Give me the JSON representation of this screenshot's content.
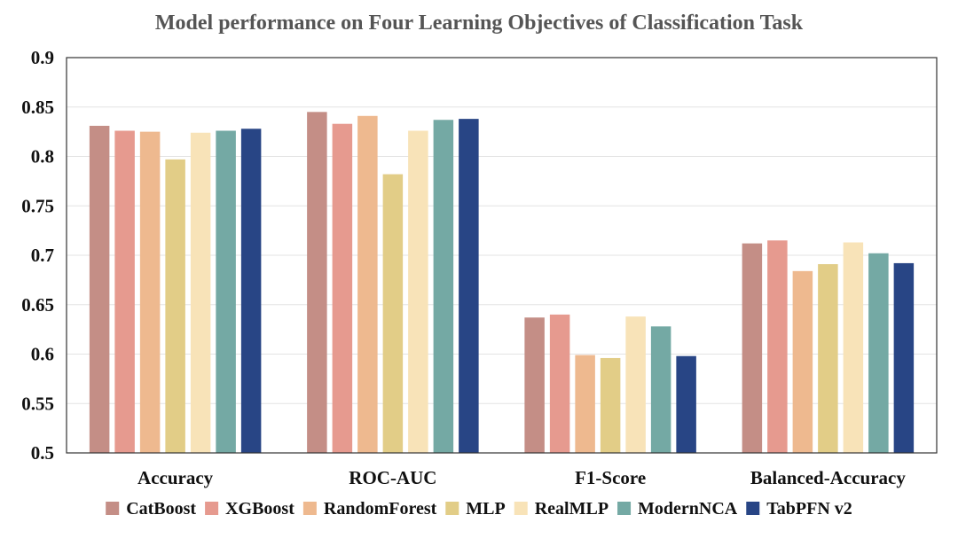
{
  "chart_data": {
    "type": "bar",
    "title": "Model performance on Four Learning Objectives of Classification Task",
    "xlabel": "",
    "ylabel": "",
    "ylim": [
      0.5,
      0.9
    ],
    "yticks": [
      "0.5",
      "0.55",
      "0.6",
      "0.65",
      "0.7",
      "0.75",
      "0.8",
      "0.85",
      "0.9"
    ],
    "categories": [
      "Accuracy",
      "ROC-AUC",
      "F1-Score",
      "Balanced-Accuracy"
    ],
    "grid": "horizontal",
    "legend_position": "bottom",
    "series": [
      {
        "name": "CatBoost",
        "color": "#c48e86",
        "values": [
          0.831,
          0.845,
          0.637,
          0.712
        ]
      },
      {
        "name": "XGBoost",
        "color": "#e69a8f",
        "values": [
          0.826,
          0.833,
          0.64,
          0.715
        ]
      },
      {
        "name": "RandomForest",
        "color": "#eeb98f",
        "values": [
          0.825,
          0.841,
          0.599,
          0.684
        ]
      },
      {
        "name": "MLP",
        "color": "#e2cd87",
        "values": [
          0.797,
          0.782,
          0.596,
          0.691
        ]
      },
      {
        "name": "RealMLP",
        "color": "#f8e3b8",
        "values": [
          0.824,
          0.826,
          0.638,
          0.713
        ]
      },
      {
        "name": "ModernNCA",
        "color": "#74a9a4",
        "values": [
          0.826,
          0.837,
          0.628,
          0.702
        ]
      },
      {
        "name": "TabPFN v2",
        "color": "#284585",
        "values": [
          0.828,
          0.838,
          0.598,
          0.692
        ]
      }
    ]
  }
}
